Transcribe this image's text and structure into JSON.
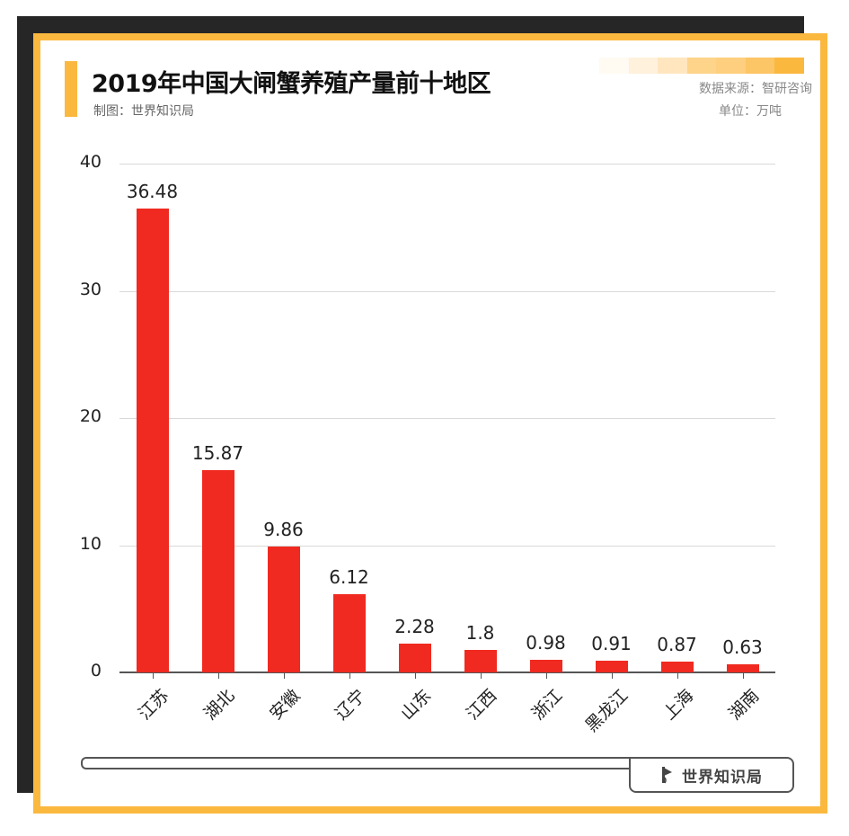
{
  "header": {
    "title": "2019年中国大闸蟹养殖产量前十地区",
    "subtitle": "制图：世界知识局",
    "source": "数据来源：智研咨询",
    "unit": "单位：万吨",
    "strip_colors": [
      "#fffaf2",
      "#fff1dc",
      "#ffe6bf",
      "#fdd48a",
      "#fdcf7e",
      "#fcc566",
      "#fbb83f"
    ]
  },
  "colors": {
    "frame": "#fbb83f",
    "shadow": "#262626",
    "bar": "#f02a20",
    "grid": "#d9d9d9"
  },
  "footer": {
    "brand_label": "世界知识局",
    "icon": "flag-icon"
  },
  "chart_data": {
    "type": "bar",
    "title": "2019年中国大闸蟹养殖产量前十地区",
    "xlabel": "",
    "ylabel": "万吨",
    "categories": [
      "江苏",
      "湖北",
      "安徽",
      "辽宁",
      "山东",
      "江西",
      "浙江",
      "黑龙江",
      "上海",
      "湖南"
    ],
    "values": [
      36.48,
      15.87,
      9.86,
      6.12,
      2.28,
      1.8,
      0.98,
      0.91,
      0.87,
      0.63
    ],
    "value_labels": [
      "36.48",
      "15.87",
      "9.86",
      "6.12",
      "2.28",
      "1.8",
      "0.98",
      "0.91",
      "0.87",
      "0.63"
    ],
    "ylim": [
      0,
      40
    ],
    "yticks": [
      0,
      10,
      20,
      30,
      40
    ],
    "grid": true,
    "legend": null,
    "source": "智研咨询"
  }
}
